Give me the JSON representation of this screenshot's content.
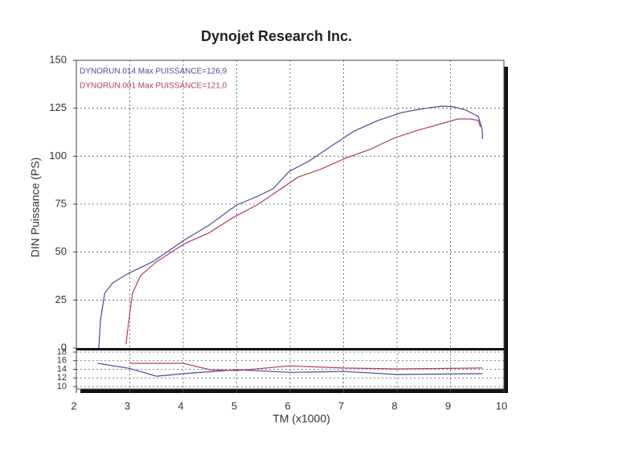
{
  "chart_data": [
    {
      "type": "line",
      "title": "Dynojet Research Inc.",
      "xlabel": "TM (x1000)",
      "ylabel": "DIN Puissance (PS)",
      "xlim": [
        2,
        10
      ],
      "xticks": [
        2,
        3,
        4,
        5,
        6,
        7,
        8,
        9,
        10
      ],
      "ylim": [
        0,
        150
      ],
      "yticks": [
        0,
        25,
        50,
        75,
        100,
        125,
        150
      ],
      "grid": true,
      "legend": "top-left",
      "series": [
        {
          "name": "DYNORUN.014  Max PUISSANCE=126,9",
          "color": "#4a4a9a",
          "x": [
            2.42,
            2.45,
            2.53,
            2.68,
            2.98,
            3.43,
            4.03,
            4.48,
            5.0,
            5.38,
            5.68,
            5.98,
            6.36,
            6.74,
            7.19,
            7.64,
            8.09,
            8.54,
            8.84,
            9.07,
            9.29,
            9.52,
            9.59,
            9.6
          ],
          "values": [
            0,
            14,
            28.5,
            34,
            39,
            45,
            56.5,
            64,
            74.6,
            79,
            83,
            92,
            97.6,
            104.7,
            113,
            118.6,
            122.8,
            125,
            126.1,
            125.7,
            124,
            120.7,
            114.4,
            109
          ]
        },
        {
          "name": "DYNORUN.001  Max PUISSANCE=121,0",
          "color": "#b04060",
          "x": [
            2.93,
            2.98,
            3.05,
            3.2,
            3.5,
            4.03,
            4.48,
            4.93,
            5.38,
            5.83,
            6.14,
            6.59,
            7.04,
            7.49,
            7.94,
            8.39,
            8.77,
            9.14,
            9.37,
            9.52,
            9.56
          ],
          "values": [
            2,
            14,
            28.5,
            37.7,
            45,
            54.5,
            60,
            68,
            74.6,
            83,
            89,
            93.4,
            99,
            103.5,
            109.4,
            113.5,
            116.5,
            119.4,
            119.4,
            118.6,
            115.2
          ]
        }
      ]
    },
    {
      "type": "line",
      "xlim": [
        2,
        10
      ],
      "ylim": [
        10,
        18
      ],
      "yticks": [
        10,
        12,
        14,
        16,
        18
      ],
      "grid": true,
      "series": [
        {
          "color": "#4a4a9a",
          "x": [
            2.4,
            3.0,
            3.5,
            4.0,
            5.0,
            6.0,
            7.0,
            8.0,
            9.6
          ],
          "values": [
            15.4,
            14.2,
            12.4,
            13,
            13.9,
            13.3,
            13.5,
            12.8,
            13
          ]
        },
        {
          "color": "#b04060",
          "x": [
            3.0,
            4.0,
            4.5,
            5.0,
            6.0,
            7.0,
            8.0,
            9.6
          ],
          "values": [
            15.4,
            15.4,
            13.9,
            13.7,
            14.8,
            14.3,
            14.1,
            14.3
          ]
        }
      ]
    }
  ]
}
